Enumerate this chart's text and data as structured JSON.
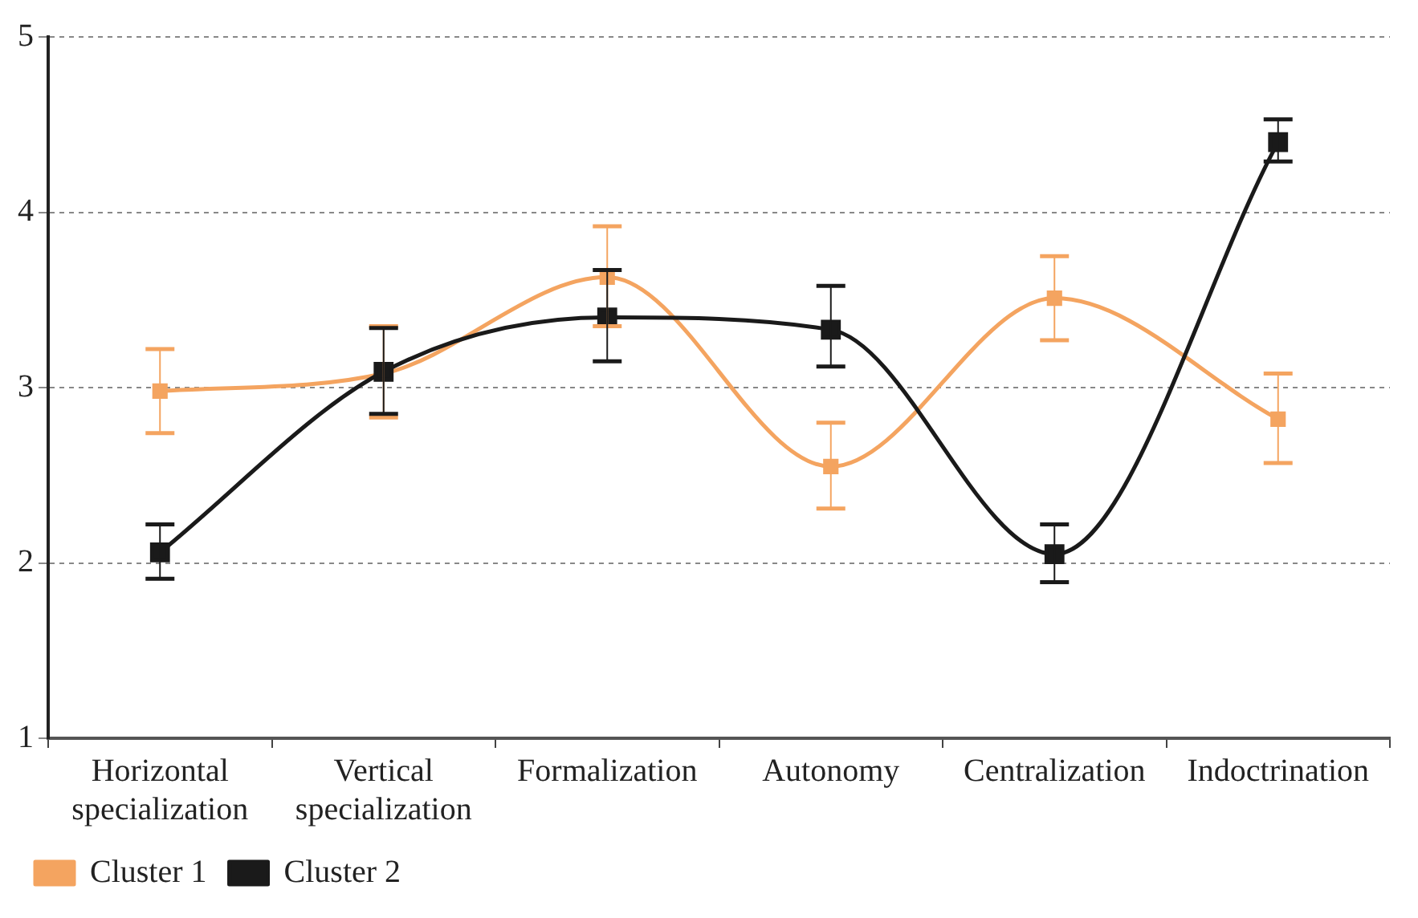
{
  "chart_data": {
    "type": "line",
    "categories": [
      "Horizontal specialization",
      "Vertical specialization",
      "Formalization",
      "Autonomy",
      "Centralization",
      "Indoctrination"
    ],
    "series": [
      {
        "name": "Cluster 1",
        "color": "#f4a460",
        "values": [
          2.98,
          3.08,
          3.63,
          2.55,
          3.51,
          2.82
        ],
        "errors": [
          [
            2.74,
            3.22
          ],
          [
            2.83,
            3.35
          ],
          [
            3.35,
            3.92
          ],
          [
            2.31,
            2.8
          ],
          [
            3.27,
            3.75
          ],
          [
            2.57,
            3.08
          ]
        ]
      },
      {
        "name": "Cluster 2",
        "color": "#1a1a1a",
        "values": [
          2.06,
          3.09,
          3.4,
          3.33,
          2.05,
          4.4
        ],
        "errors": [
          [
            1.91,
            2.22
          ],
          [
            2.85,
            3.34
          ],
          [
            3.15,
            3.67
          ],
          [
            3.12,
            3.58
          ],
          [
            1.89,
            2.22
          ],
          [
            4.29,
            4.53
          ]
        ]
      }
    ],
    "ylim": [
      1,
      5
    ],
    "yticks": [
      1,
      2,
      3,
      4,
      5
    ],
    "grid": "y",
    "legend": "bottom left",
    "marker": "square",
    "line_style": "solid"
  }
}
